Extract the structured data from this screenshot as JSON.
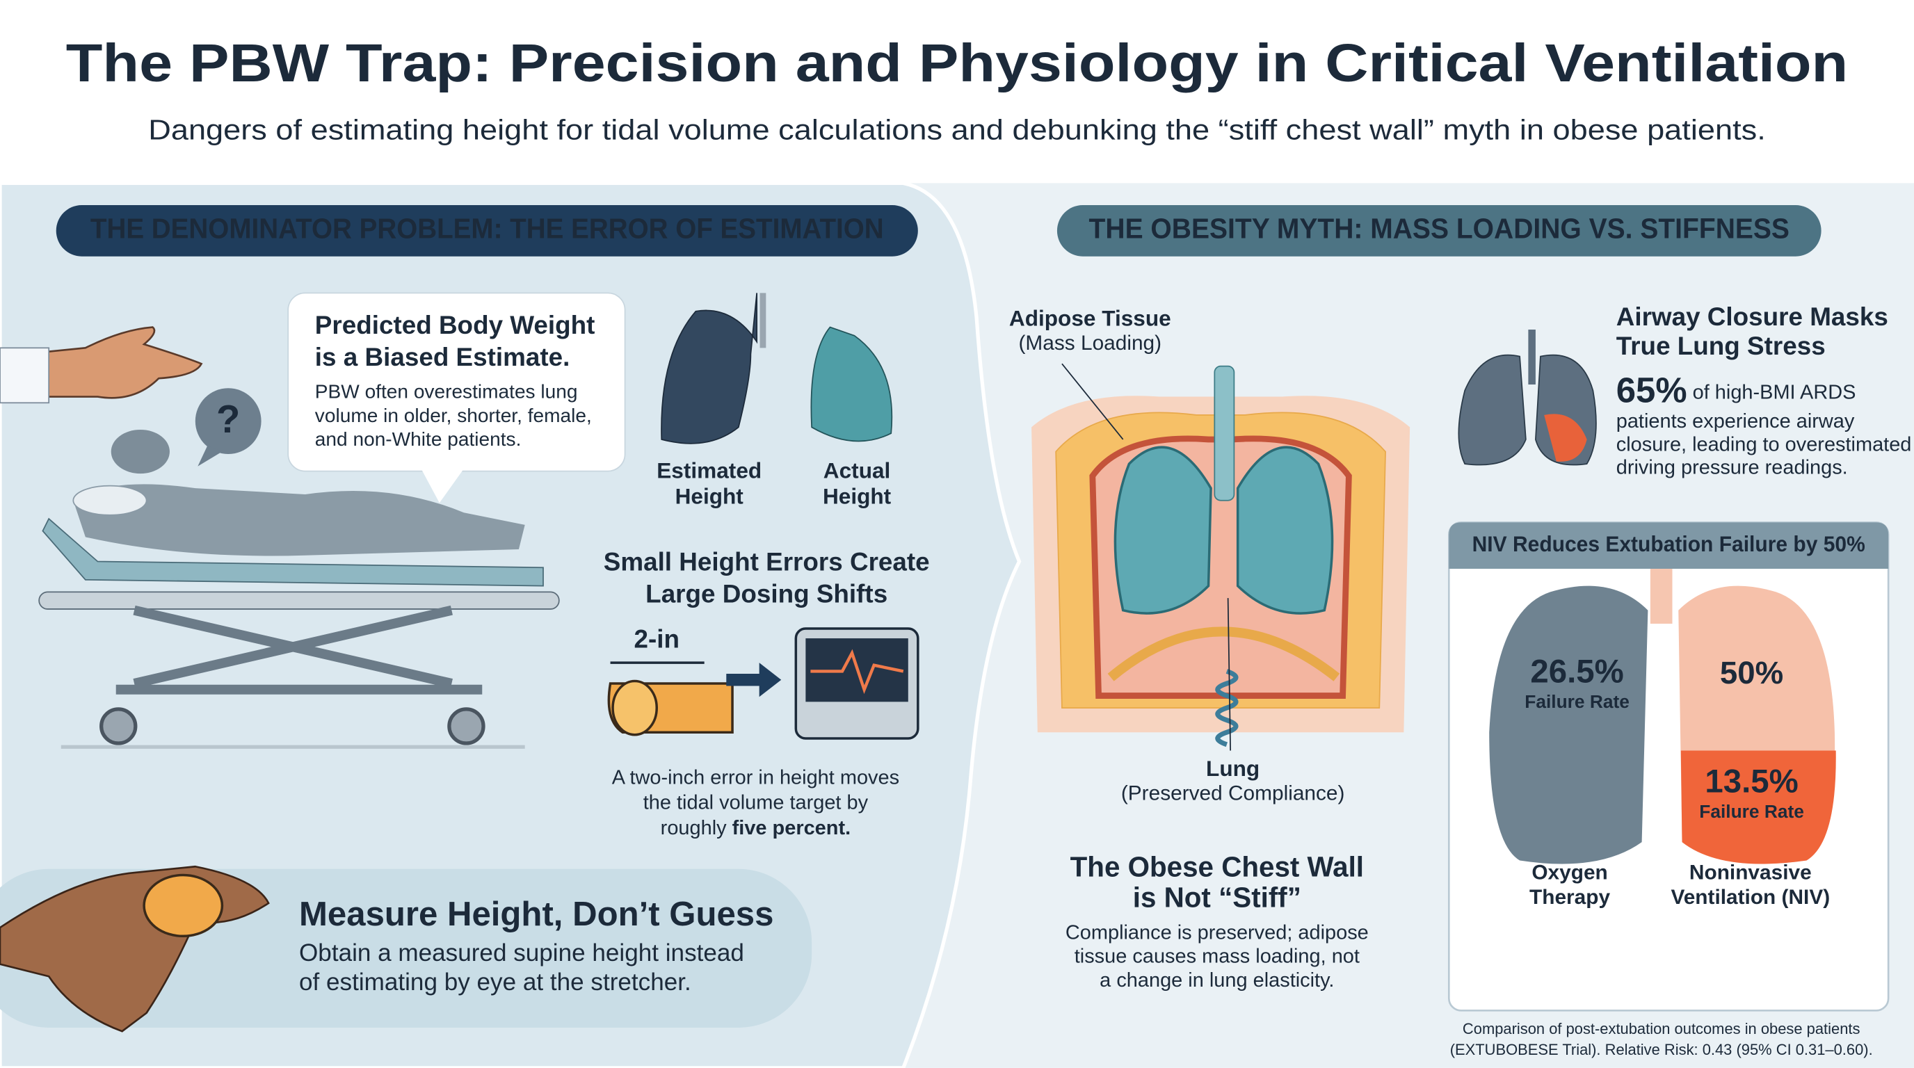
{
  "header": {
    "title": "The PBW Trap: Precision and Physiology in Critical Ventilation",
    "subtitle": "Dangers of estimating height for tidal volume calculations and debunking the “stiff chest wall” myth in obese patients."
  },
  "left_panel": {
    "heading": "THE DENOMINATOR PROBLEM: THE ERROR OF ESTIMATION",
    "callout": {
      "question": "?",
      "title": [
        "Predicted Body Weight",
        "is a Biased Estimate."
      ],
      "body": [
        "PBW often overestimates lung",
        "volume in older, shorter, female,",
        "and non-White patients."
      ]
    },
    "lungs": [
      {
        "label": [
          "Estimated",
          "Height"
        ]
      },
      {
        "label": [
          "Actual",
          "Height"
        ]
      }
    ],
    "dosing": {
      "title": [
        "Small Height Errors Create",
        "Large Dosing Shifts"
      ],
      "tape_label": "2-in",
      "caption": [
        "A two-inch error in height moves",
        "the tidal volume target by"
      ],
      "caption_end": "roughly ",
      "caption_emphasis": "five percent."
    },
    "measure": {
      "title": "Measure Height, Don’t Guess",
      "body": [
        "Obtain a measured supine height instead",
        "of estimating by eye at the stretcher."
      ]
    }
  },
  "right_panel": {
    "heading": "THE OBESITY MYTH: MASS LOADING VS. STIFFNESS",
    "adipose": {
      "title": "Adipose Tissue",
      "note": "(Mass Loading)"
    },
    "lung": {
      "title": "Lung",
      "note": "(Preserved Compliance)"
    },
    "chest_wall": {
      "title": [
        "The Obese Chest Wall",
        "is Not “Stiff”"
      ],
      "body": [
        "Compliance is preserved; adipose",
        "tissue causes mass loading, not",
        "a change in lung elasticity."
      ]
    },
    "airway": {
      "title": [
        "Airway Closure Masks",
        "True Lung Stress"
      ],
      "stat": "65%",
      "stat_text": " of high-BMI ARDS",
      "body": [
        "patients experience airway",
        "closure, leading to overestimated",
        "driving pressure readings."
      ]
    },
    "niv": {
      "title": "NIV Reduces Extubation Failure by 50%",
      "reduction": "50%",
      "groups": [
        {
          "value": "26.5%",
          "sub": "Failure Rate",
          "label": [
            "Oxygen",
            "Therapy"
          ]
        },
        {
          "value": "13.5%",
          "sub": "Failure Rate",
          "label": [
            "Noninvasive",
            "Ventilation (NIV)"
          ]
        }
      ],
      "footnote": [
        "Comparison of post-extubation outcomes in obese patients",
        "(EXTUBOBESE Trial). Relative Risk: 0.43 (95% CI 0.31–0.60)."
      ]
    }
  }
}
